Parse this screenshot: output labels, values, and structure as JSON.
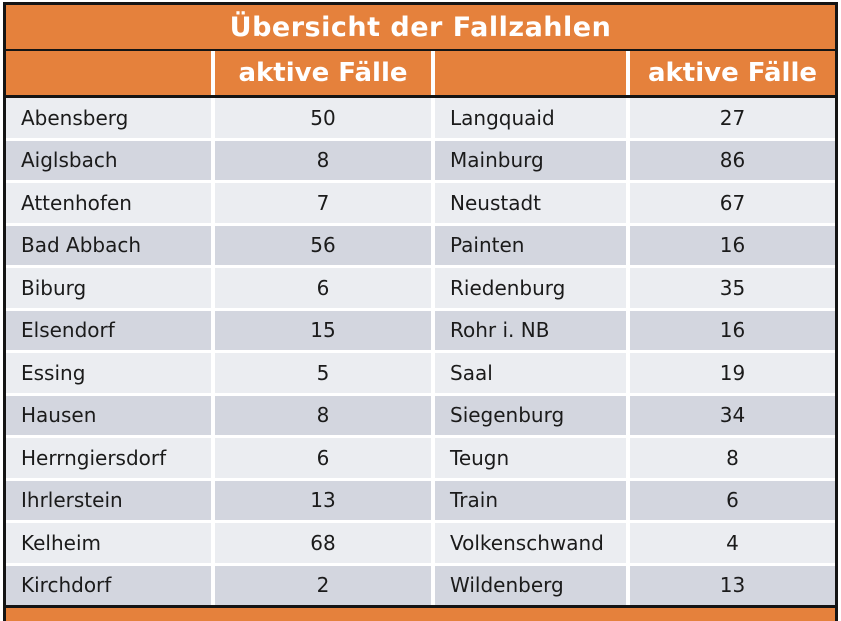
{
  "table": {
    "title": "Übersicht der Fallzahlen",
    "col_header": "aktive Fälle"
  },
  "colors": {
    "accent_orange": "#e5813c",
    "border_black": "#141414",
    "row_light": "#ebedf1",
    "row_dark": "#d3d6df",
    "header_text": "#ffffff",
    "body_text": "#1b1b1b"
  },
  "chart_data": {
    "type": "table",
    "title": "Übersicht der Fallzahlen",
    "columns": [
      "",
      "aktive Fälle",
      "",
      "aktive Fälle"
    ],
    "layout": "two column-pairs, 12 rows, left entries 0-11, right entries 12-23",
    "entries": [
      {
        "name": "Abensberg",
        "value": 50
      },
      {
        "name": "Aiglsbach",
        "value": 8
      },
      {
        "name": "Attenhofen",
        "value": 7
      },
      {
        "name": "Bad Abbach",
        "value": 56
      },
      {
        "name": "Biburg",
        "value": 6
      },
      {
        "name": "Elsendorf",
        "value": 15
      },
      {
        "name": "Essing",
        "value": 5
      },
      {
        "name": "Hausen",
        "value": 8
      },
      {
        "name": "Herrngiersdorf",
        "value": 6
      },
      {
        "name": "Ihrlerstein",
        "value": 13
      },
      {
        "name": "Kelheim",
        "value": 68
      },
      {
        "name": "Kirchdorf",
        "value": 2
      },
      {
        "name": "Langquaid",
        "value": 27
      },
      {
        "name": "Mainburg",
        "value": 86
      },
      {
        "name": "Neustadt",
        "value": 67
      },
      {
        "name": "Painten",
        "value": 16
      },
      {
        "name": "Riedenburg",
        "value": 35
      },
      {
        "name": "Rohr i. NB",
        "value": 16
      },
      {
        "name": "Saal",
        "value": 19
      },
      {
        "name": "Siegenburg",
        "value": 34
      },
      {
        "name": "Teugn",
        "value": 8
      },
      {
        "name": "Train",
        "value": 6
      },
      {
        "name": "Volkenschwand",
        "value": 4
      },
      {
        "name": "Wildenberg",
        "value": 13
      }
    ]
  }
}
